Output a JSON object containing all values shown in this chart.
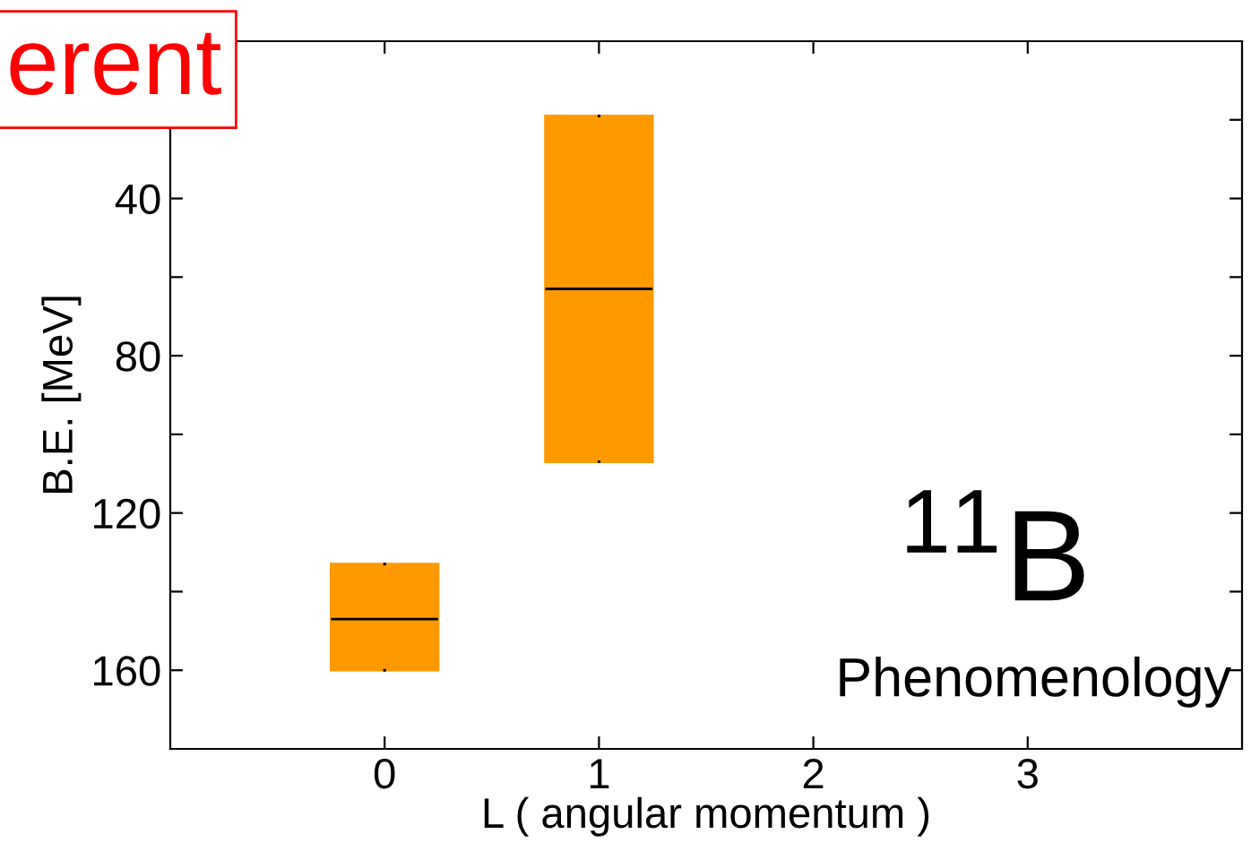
{
  "chart_data": {
    "type": "box",
    "x": [
      0,
      1
    ],
    "color": "#ff9900",
    "boxes": [
      {
        "low": 133,
        "q1": 133,
        "median": 147,
        "q3": 160,
        "high": 160
      },
      {
        "low": 19,
        "q1": 19,
        "median": 63,
        "q3": 107,
        "high": 107
      }
    ],
    "xlabel": "L ( angular momentum )",
    "ylabel": "B.E. [MeV]",
    "xlim": [
      -1,
      4
    ],
    "xticks": [
      0,
      1,
      2,
      3
    ],
    "ylim": [
      180,
      0
    ],
    "yticks": [
      {
        "value": 20,
        "label": null
      },
      40,
      {
        "value": 60,
        "label": null
      },
      80,
      {
        "value": 100,
        "label": null
      },
      120,
      {
        "value": 140,
        "label": null
      },
      160
    ],
    "annotations": [
      "erent",
      "$^{11}$B",
      "Phenomenology"
    ],
    "grid": false,
    "legend": false
  }
}
